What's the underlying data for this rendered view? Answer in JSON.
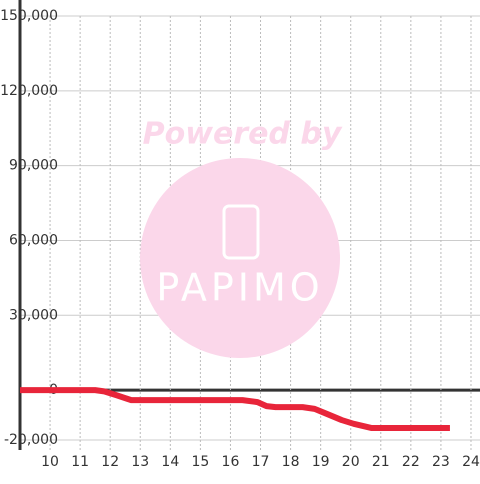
{
  "chart_data": {
    "type": "line",
    "x": [
      9,
      11.5,
      11.8,
      12.2,
      12.7,
      16.4,
      16.9,
      17.2,
      17.5,
      18.4,
      18.8,
      19.2,
      19.7,
      20.1,
      20.7,
      23.3
    ],
    "series": [
      {
        "color": "#e8253a",
        "values": [
          0,
          0,
          -500,
          -2000,
          -4000,
          -4000,
          -4800,
          -6400,
          -6800,
          -6800,
          -7500,
          -9500,
          -12000,
          -13500,
          -15200,
          -15200
        ]
      }
    ],
    "xlim": [
      9,
      24.3
    ],
    "xticks": [
      10,
      11,
      12,
      13,
      14,
      15,
      16,
      17,
      18,
      19,
      20,
      21,
      22,
      23,
      24
    ],
    "ylim": [
      -24000,
      150000
    ],
    "yticks": [
      {
        "value": -20000,
        "label": "-20,000"
      },
      0,
      {
        "value": 30000,
        "label": "30,000"
      },
      {
        "value": 60000,
        "label": "60,000"
      },
      {
        "value": 90000,
        "label": "90,000"
      },
      {
        "value": 120000,
        "label": "120,000"
      },
      {
        "value": 150000,
        "label": "150,000"
      }
    ],
    "grid": true,
    "annotations": [
      "Powered by",
      "PAPIMO"
    ]
  }
}
